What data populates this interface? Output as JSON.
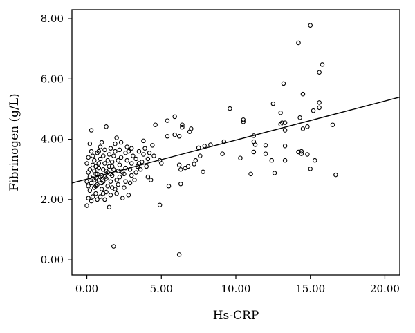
{
  "chart_data": {
    "type": "scatter",
    "xlabel": "Hs-CRP",
    "ylabel": "Fibrinogen (g/L)",
    "xlim": [
      -1.0,
      21.0
    ],
    "ylim": [
      -0.5,
      8.3
    ],
    "x_ticks": [
      0,
      5,
      10,
      15,
      20
    ],
    "x_tick_labels": [
      "0.00",
      "5.00",
      "10.00",
      "15.00",
      "20.00"
    ],
    "y_ticks": [
      0,
      2,
      4,
      6,
      8
    ],
    "y_tick_labels": [
      "0.00",
      "2.00",
      "4.00",
      "6.00",
      "8.00"
    ],
    "grid": false,
    "marker": "open-circle",
    "marker_color": "#000000",
    "fit_line": {
      "x": [
        -1.0,
        21.0
      ],
      "y": [
        2.55,
        5.4
      ]
    },
    "points": [
      [
        15.0,
        7.78
      ],
      [
        14.2,
        7.2
      ],
      [
        15.8,
        6.48
      ],
      [
        15.6,
        6.22
      ],
      [
        13.2,
        5.85
      ],
      [
        14.5,
        5.5
      ],
      [
        15.6,
        5.22
      ],
      [
        15.6,
        5.05
      ],
      [
        12.5,
        5.18
      ],
      [
        15.2,
        4.95
      ],
      [
        9.6,
        5.02
      ],
      [
        13.0,
        4.88
      ],
      [
        14.3,
        4.72
      ],
      [
        10.5,
        4.65
      ],
      [
        10.5,
        4.58
      ],
      [
        13.1,
        4.55
      ],
      [
        13.3,
        4.55
      ],
      [
        13.0,
        4.5
      ],
      [
        16.5,
        4.48
      ],
      [
        14.8,
        4.42
      ],
      [
        14.5,
        4.35
      ],
      [
        13.3,
        4.3
      ],
      [
        11.2,
        4.12
      ],
      [
        11.2,
        3.92
      ],
      [
        12.0,
        3.8
      ],
      [
        11.3,
        3.82
      ],
      [
        13.3,
        3.78
      ],
      [
        14.2,
        3.58
      ],
      [
        14.4,
        3.6
      ],
      [
        14.4,
        3.52
      ],
      [
        14.8,
        3.5
      ],
      [
        12.0,
        3.52
      ],
      [
        11.2,
        3.58
      ],
      [
        12.4,
        3.3
      ],
      [
        13.3,
        3.3
      ],
      [
        15.3,
        3.3
      ],
      [
        15.0,
        3.02
      ],
      [
        12.6,
        2.88
      ],
      [
        11.0,
        2.85
      ],
      [
        16.7,
        2.82
      ],
      [
        10.3,
        3.38
      ],
      [
        9.2,
        3.92
      ],
      [
        9.1,
        3.52
      ],
      [
        8.3,
        3.82
      ],
      [
        7.9,
        3.78
      ],
      [
        7.5,
        3.72
      ],
      [
        7.6,
        3.45
      ],
      [
        7.3,
        3.3
      ],
      [
        7.2,
        3.18
      ],
      [
        6.8,
        3.1
      ],
      [
        6.6,
        3.05
      ],
      [
        7.0,
        4.35
      ],
      [
        6.9,
        4.25
      ],
      [
        6.4,
        4.48
      ],
      [
        6.4,
        4.4
      ],
      [
        5.9,
        4.75
      ],
      [
        5.4,
        4.62
      ],
      [
        6.2,
        4.1
      ],
      [
        5.9,
        4.15
      ],
      [
        5.4,
        4.1
      ],
      [
        4.6,
        4.48
      ],
      [
        6.2,
        3.15
      ],
      [
        6.3,
        3.0
      ],
      [
        5.5,
        2.45
      ],
      [
        4.9,
        3.3
      ],
      [
        5.0,
        3.2
      ],
      [
        6.3,
        2.52
      ],
      [
        4.9,
        1.82
      ],
      [
        7.8,
        2.92
      ],
      [
        6.2,
        0.18
      ],
      [
        1.8,
        0.45
      ],
      [
        0.0,
        1.8
      ],
      [
        0.1,
        2.05
      ],
      [
        0.2,
        2.3
      ],
      [
        0.3,
        2.55
      ],
      [
        0.0,
        2.6
      ],
      [
        0.1,
        2.9
      ],
      [
        0.2,
        3.0
      ],
      [
        0.0,
        3.2
      ],
      [
        0.1,
        3.4
      ],
      [
        0.3,
        3.6
      ],
      [
        0.2,
        3.85
      ],
      [
        0.3,
        4.3
      ],
      [
        0.4,
        2.1
      ],
      [
        0.5,
        2.4
      ],
      [
        0.4,
        2.7
      ],
      [
        0.5,
        2.95
      ],
      [
        0.6,
        3.1
      ],
      [
        0.5,
        3.3
      ],
      [
        0.6,
        2.2
      ],
      [
        0.7,
        2.5
      ],
      [
        0.8,
        2.65
      ],
      [
        0.7,
        2.85
      ],
      [
        0.8,
        3.05
      ],
      [
        0.9,
        3.35
      ],
      [
        0.7,
        3.55
      ],
      [
        0.9,
        3.75
      ],
      [
        1.0,
        3.9
      ],
      [
        0.9,
        2.1
      ],
      [
        1.0,
        2.35
      ],
      [
        1.1,
        2.6
      ],
      [
        1.0,
        2.8
      ],
      [
        1.1,
        3.0
      ],
      [
        1.2,
        3.2
      ],
      [
        1.1,
        3.45
      ],
      [
        1.2,
        3.65
      ],
      [
        1.2,
        2.0
      ],
      [
        1.3,
        2.25
      ],
      [
        1.4,
        2.45
      ],
      [
        1.3,
        2.7
      ],
      [
        1.4,
        2.9
      ],
      [
        1.5,
        3.1
      ],
      [
        1.4,
        3.3
      ],
      [
        1.5,
        3.5
      ],
      [
        1.6,
        3.7
      ],
      [
        1.3,
        4.42
      ],
      [
        1.5,
        1.75
      ],
      [
        1.6,
        2.15
      ],
      [
        1.7,
        2.4
      ],
      [
        1.6,
        2.6
      ],
      [
        1.7,
        2.8
      ],
      [
        1.8,
        3.0
      ],
      [
        1.7,
        3.25
      ],
      [
        1.8,
        3.45
      ],
      [
        1.9,
        3.6
      ],
      [
        1.9,
        3.85
      ],
      [
        2.0,
        4.05
      ],
      [
        2.0,
        2.2
      ],
      [
        2.1,
        2.5
      ],
      [
        2.2,
        2.75
      ],
      [
        2.1,
        2.95
      ],
      [
        2.2,
        3.15
      ],
      [
        2.3,
        3.4
      ],
      [
        2.2,
        3.65
      ],
      [
        2.3,
        3.9
      ],
      [
        2.4,
        2.05
      ],
      [
        2.5,
        2.4
      ],
      [
        2.6,
        2.6
      ],
      [
        2.5,
        2.85
      ],
      [
        2.6,
        3.05
      ],
      [
        2.7,
        3.3
      ],
      [
        2.6,
        3.55
      ],
      [
        2.7,
        3.75
      ],
      [
        2.8,
        2.15
      ],
      [
        2.9,
        2.55
      ],
      [
        3.0,
        2.8
      ],
      [
        2.9,
        3.0
      ],
      [
        3.0,
        3.2
      ],
      [
        3.1,
        3.45
      ],
      [
        3.0,
        3.7
      ],
      [
        3.2,
        2.65
      ],
      [
        3.3,
        2.9
      ],
      [
        3.4,
        3.1
      ],
      [
        3.3,
        3.35
      ],
      [
        3.5,
        3.6
      ],
      [
        3.6,
        3.0
      ],
      [
        3.7,
        3.25
      ],
      [
        3.8,
        3.5
      ],
      [
        3.9,
        3.7
      ],
      [
        3.8,
        3.95
      ],
      [
        4.0,
        3.1
      ],
      [
        4.1,
        3.35
      ],
      [
        4.2,
        3.55
      ],
      [
        4.1,
        2.75
      ],
      [
        4.3,
        2.65
      ],
      [
        4.4,
        3.8
      ],
      [
        4.5,
        3.45
      ],
      [
        0.2,
        2.75
      ],
      [
        0.4,
        3.15
      ],
      [
        0.6,
        2.45
      ],
      [
        0.8,
        3.2
      ],
      [
        1.0,
        2.55
      ],
      [
        0.3,
        1.95
      ],
      [
        0.7,
        2.0
      ],
      [
        1.1,
        2.2
      ],
      [
        1.9,
        2.35
      ],
      [
        2.4,
        2.9
      ],
      [
        2.8,
        3.6
      ],
      [
        3.5,
        3.2
      ],
      [
        0.1,
        2.45
      ],
      [
        0.5,
        2.65
      ],
      [
        0.9,
        2.75
      ],
      [
        1.3,
        2.95
      ],
      [
        1.7,
        3.1
      ],
      [
        2.1,
        3.3
      ],
      [
        0.4,
        3.45
      ],
      [
        0.8,
        3.6
      ],
      [
        1.2,
        2.75
      ],
      [
        1.6,
        2.85
      ],
      [
        2.0,
        2.65
      ],
      [
        0.6,
        2.85
      ]
    ]
  }
}
